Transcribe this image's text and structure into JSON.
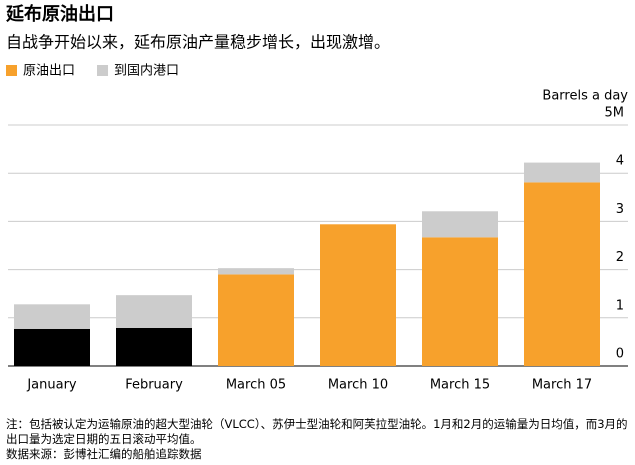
{
  "chart_data": {
    "type": "bar",
    "stacked": true,
    "title": "延布原油出口",
    "subtitle": "自战争开始以来，延布原油产量稳步增长，出现激增。",
    "y_label": "Barrels a day",
    "categories": [
      "January",
      "February",
      "March 05",
      "March 10",
      "March 15",
      "March 17"
    ],
    "series": [
      {
        "name": "原油出口",
        "color": "#f7a12c",
        "colors": [
          "#000000",
          "#000000",
          "#f7a12c",
          "#f7a12c",
          "#f7a12c",
          "#f7a12c"
        ],
        "values": [
          0.77,
          0.79,
          1.9,
          2.94,
          2.67,
          3.81
        ]
      },
      {
        "name": "到国内港口",
        "color": "#cccccc",
        "values": [
          0.51,
          0.68,
          0.13,
          null,
          0.54,
          0.41
        ]
      }
    ],
    "ylim": [
      0,
      5
    ],
    "yticks": [
      0,
      1,
      2,
      3,
      4,
      {
        "value": 5,
        "label": "5M"
      }
    ],
    "grid": true,
    "note": "注：包括被认定为运输原油的超大型油轮（VLCC）、苏伊士型油轮和阿芙拉型油轮。1月和2月的运输量为日均值，而3月的出口量为选定日期的五日滚动平均值。",
    "source": "数据来源：彭博社汇编的船舶追踪数据"
  }
}
